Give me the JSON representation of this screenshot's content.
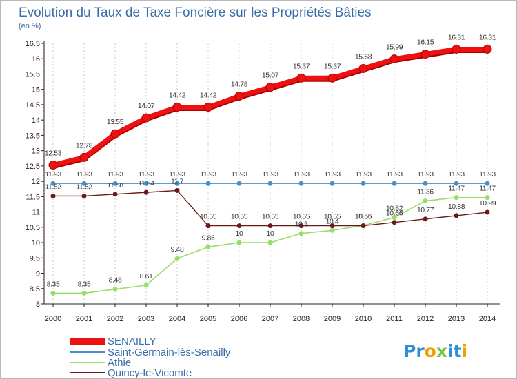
{
  "chart_data": {
    "type": "line",
    "title": "Evolution du Taux de Taxe Foncière sur les Propriétés Bâties",
    "ylabel": "(en %)",
    "xlabel": "",
    "ylim": [
      8,
      16.5
    ],
    "yticks": [
      8,
      8.5,
      9,
      9.5,
      10,
      10.5,
      11,
      11.5,
      12,
      12.5,
      13,
      13.5,
      14,
      14.5,
      15,
      15.5,
      16,
      16.5
    ],
    "categories": [
      "2000",
      "2001",
      "2002",
      "2003",
      "2004",
      "2005",
      "2006",
      "2007",
      "2008",
      "2009",
      "2010",
      "2011",
      "2012",
      "2013",
      "2014"
    ],
    "grid": "vertical-dashed",
    "legend_position": "bottom-left",
    "series": [
      {
        "name": "SENAILLY",
        "color": "#ee1111",
        "values": [
          12.53,
          12.78,
          13.55,
          14.07,
          14.42,
          14.42,
          14.78,
          15.07,
          15.37,
          15.37,
          15.68,
          15.99,
          16.15,
          16.31,
          16.31
        ],
        "labels": [
          "12.53",
          "12.78",
          "13.55",
          "14.07",
          "14.42",
          "14.42",
          "14.78",
          "15.07",
          "15.37",
          "15.37",
          "15.68",
          "15.99",
          "16.15",
          "16.31",
          "16.31"
        ]
      },
      {
        "name": "Saint-Germain-lès-Senailly",
        "color": "#4a8fc8",
        "values": [
          11.93,
          11.93,
          11.93,
          11.93,
          11.93,
          11.93,
          11.93,
          11.93,
          11.93,
          11.93,
          11.93,
          11.93,
          11.93,
          11.93,
          11.93
        ],
        "labels": [
          "11.93",
          "11.93",
          "11.93",
          "11.93",
          "11.93",
          "11.93",
          "11.93",
          "11.93",
          "11.93",
          "11.93",
          "11.93",
          "11.93",
          "11.93",
          "11.93",
          "11.93"
        ]
      },
      {
        "name": "Athie",
        "color": "#99dd66",
        "values": [
          8.35,
          8.35,
          8.48,
          8.61,
          9.48,
          9.86,
          10,
          10,
          10.3,
          10.4,
          10.56,
          10.82,
          11.36,
          11.47,
          11.47
        ],
        "labels": [
          "8.35",
          "8.35",
          "8.48",
          "8.61",
          "9.48",
          "9.86",
          "10",
          "10",
          "10.3",
          "10.4",
          "10.56",
          "10.82",
          "11.36",
          "11.47",
          "11.47"
        ]
      },
      {
        "name": "Quincy-le-Vicomte",
        "color": "#6b1a1a",
        "values": [
          11.52,
          11.52,
          11.58,
          11.64,
          11.7,
          10.55,
          10.55,
          10.55,
          10.55,
          10.55,
          10.55,
          10.66,
          10.77,
          10.88,
          10.99
        ],
        "labels": [
          "11.52",
          "11.52",
          "11.58",
          "11.64",
          "11.7",
          "10.55",
          "10.55",
          "10.55",
          "10.55",
          "10.55",
          "10.55",
          "10.66",
          "10.77",
          "10.88",
          "10.99"
        ]
      }
    ]
  },
  "logo": {
    "text": "Proxiti",
    "colors": [
      "#2f8fd6",
      "#2f8fd6",
      "#f0a000",
      "#7cc242",
      "#2f8fd6",
      "#2f8fd6",
      "#f0a000"
    ]
  }
}
